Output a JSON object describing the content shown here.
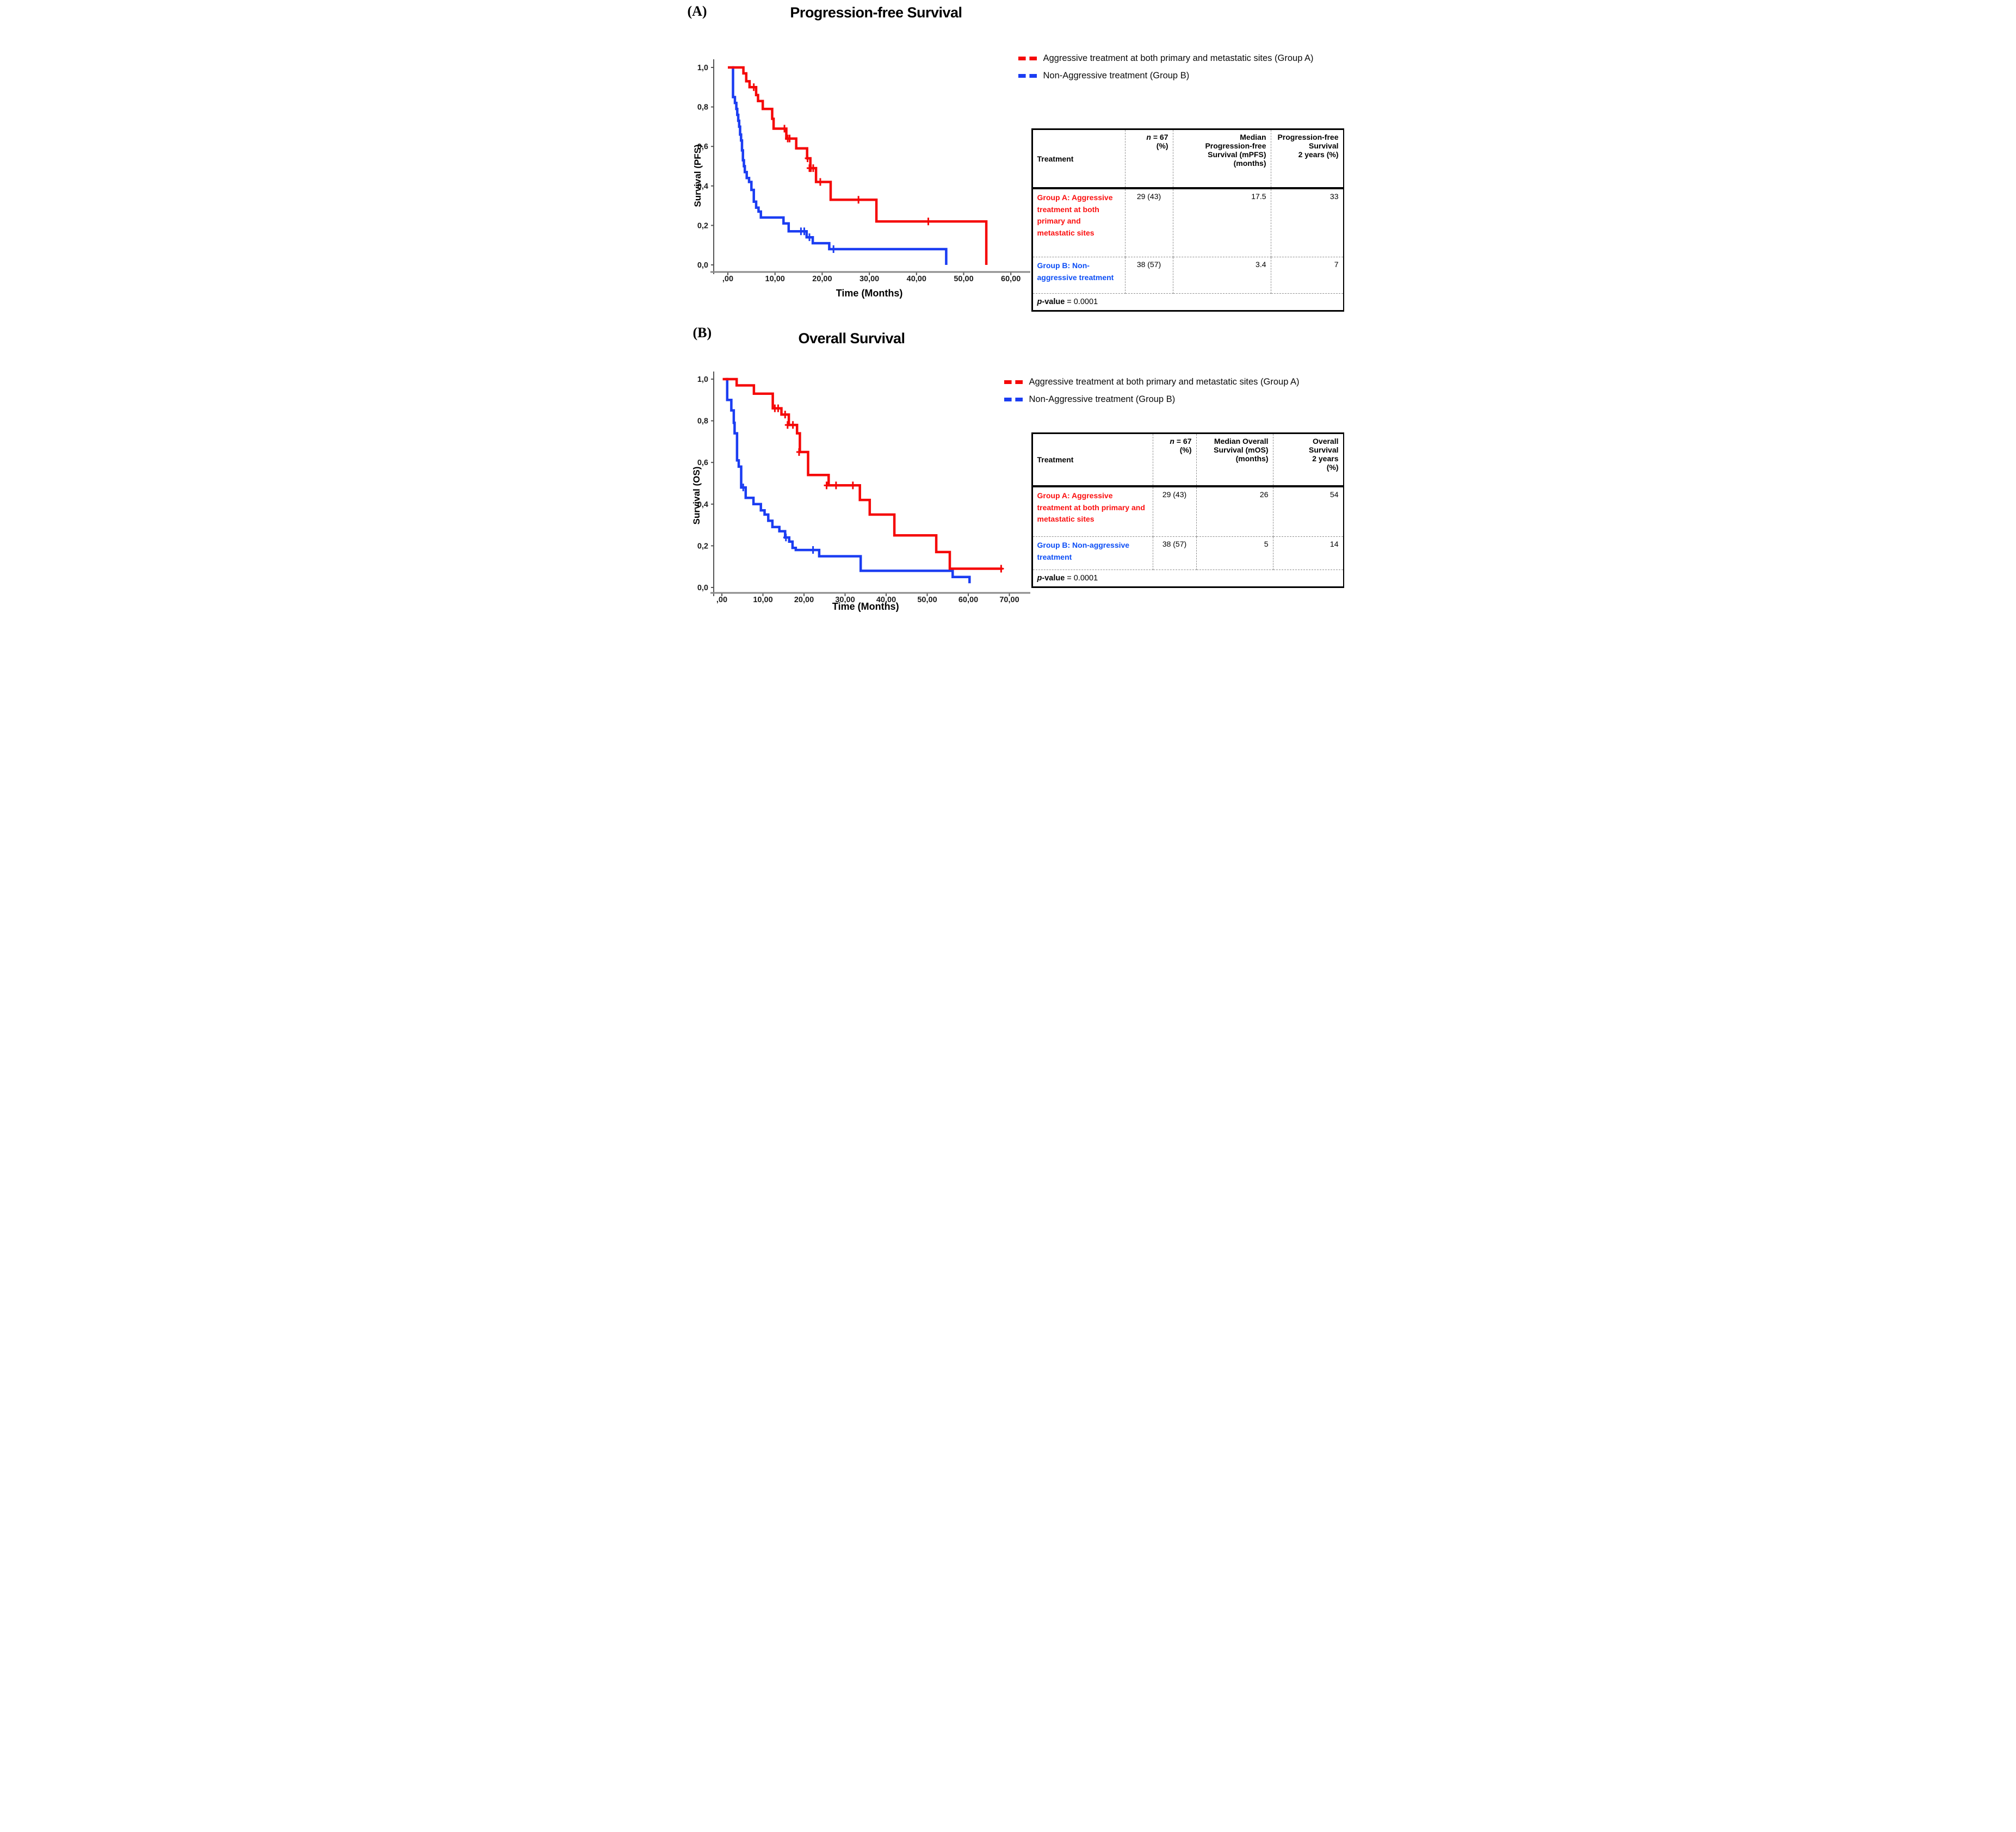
{
  "colors": {
    "curve_red": "#f50808",
    "curve_blue": "#1b3df2",
    "table_red": "#fb0f0f",
    "table_blue": "#0b4df5",
    "axis_line": "#555555",
    "baseline": "#8a8a8a"
  },
  "panelA": {
    "tag": "(A)",
    "title": "Progression-free Survival",
    "legend": [
      {
        "label": "Aggressive treatment at both primary and metastatic sites (Group A)",
        "color": "#f50808"
      },
      {
        "label": "Non-Aggressive treatment (Group B)",
        "color": "#1b3df2"
      }
    ],
    "table": {
      "header": {
        "treatment": "Treatment",
        "n_italic": "n",
        "n_rest": " = 67",
        "n_pct": "(%)",
        "median": "Median\nProgression-free\nSurvival (mPFS)\n(months)",
        "two_year": "Progression-free\nSurvival\n2 years (%)"
      },
      "rows": [
        {
          "label": "Group A: Aggressive treatment at both primary and metastatic sites",
          "n": "29 (43)",
          "median": "17.5",
          "two_year": "33"
        },
        {
          "label": "Group B: Non-aggressive treatment",
          "n": "38 (57)",
          "median": "3.4",
          "two_year": "7"
        }
      ],
      "p_italic": "p",
      "p_bold": "-value",
      "p_eq": "= 0.0001"
    }
  },
  "panelB": {
    "tag": "(B)",
    "title": "Overall Survival",
    "legend": [
      {
        "label": "Aggressive treatment at both primary and metastatic sites (Group A)",
        "color": "#f50808"
      },
      {
        "label": "Non-Aggressive treatment (Group B)",
        "color": "#1b3df2"
      }
    ],
    "table": {
      "header": {
        "treatment": "Treatment",
        "n_italic": "n",
        "n_rest": " = 67",
        "n_pct": "(%)",
        "median": "Median Overall\nSurvival (mOS)\n(months)",
        "two_year": "Overall\nSurvival\n2 years\n(%)"
      },
      "rows": [
        {
          "label": "Group A: Aggressive treatment at both primary and metastatic sites",
          "n": "29 (43)",
          "median": "26",
          "two_year": "54"
        },
        {
          "label": "Group B: Non-aggressive treatment",
          "n": "38 (57)",
          "median": "5",
          "two_year": "14"
        }
      ],
      "p_italic": "p",
      "p_bold": "-value",
      "p_eq": "= 0.0001"
    }
  },
  "chart_data": [
    {
      "type": "line",
      "subtype": "kaplan-meier-step",
      "title": "Progression-free Survival",
      "xlabel": "Time (Months)",
      "ylabel": "Survival (PFS)",
      "xlim": [
        0,
        63
      ],
      "ylim": [
        0,
        1.0
      ],
      "grid": false,
      "legend_position": "top-right",
      "xticks": {
        "values": [
          0,
          10,
          20,
          30,
          40,
          50,
          60
        ],
        "labels": [
          ",00",
          "10,00",
          "20,00",
          "30,00",
          "40,00",
          "50,00",
          "60,00"
        ]
      },
      "yticks": {
        "values": [
          1.0,
          0.8,
          0.6,
          0.4,
          0.2,
          0.0
        ],
        "labels": [
          "1,0",
          "0,8",
          "0,6",
          "0,4",
          "0,2",
          "0,0"
        ]
      },
      "series": [
        {
          "name": "Aggressive treatment at both primary and metastatic sites (Group A)",
          "color": "#f50808",
          "n": 29,
          "median_months": 17.5,
          "survival_2yr_pct": 33,
          "points": [
            [
              0,
              1.0
            ],
            [
              3.3,
              0.97
            ],
            [
              3.9,
              0.93
            ],
            [
              4.6,
              0.9
            ],
            [
              6.0,
              0.86
            ],
            [
              6.4,
              0.83
            ],
            [
              7.4,
              0.79
            ],
            [
              9.4,
              0.74
            ],
            [
              9.7,
              0.69
            ],
            [
              12.4,
              0.64
            ],
            [
              14.5,
              0.59
            ],
            [
              16.8,
              0.54
            ],
            [
              17.5,
              0.49
            ],
            [
              18.7,
              0.42
            ],
            [
              21.8,
              0.33
            ],
            [
              31.5,
              0.22
            ],
            [
              54.8,
              0.0
            ]
          ],
          "censors": [
            [
              5.5,
              0.9
            ],
            [
              12.0,
              0.69
            ],
            [
              12.7,
              0.64
            ],
            [
              13.1,
              0.64
            ],
            [
              16.9,
              0.54
            ],
            [
              17.3,
              0.49
            ],
            [
              17.6,
              0.49
            ],
            [
              18.1,
              0.49
            ],
            [
              19.6,
              0.42
            ],
            [
              27.7,
              0.33
            ],
            [
              42.5,
              0.22
            ]
          ]
        },
        {
          "name": "Non-Aggressive treatment (Group B)",
          "color": "#1b3df2",
          "n": 38,
          "median_months": 3.4,
          "survival_2yr_pct": 7,
          "points": [
            [
              0.9,
              1.0
            ],
            [
              1.1,
              0.85
            ],
            [
              1.5,
              0.82
            ],
            [
              1.8,
              0.79
            ],
            [
              2.0,
              0.76
            ],
            [
              2.2,
              0.73
            ],
            [
              2.4,
              0.7
            ],
            [
              2.6,
              0.66
            ],
            [
              2.8,
              0.63
            ],
            [
              3.0,
              0.58
            ],
            [
              3.2,
              0.53
            ],
            [
              3.4,
              0.5
            ],
            [
              3.6,
              0.47
            ],
            [
              4.0,
              0.44
            ],
            [
              4.5,
              0.42
            ],
            [
              5.0,
              0.38
            ],
            [
              5.5,
              0.32
            ],
            [
              6.0,
              0.29
            ],
            [
              6.5,
              0.27
            ],
            [
              7.0,
              0.24
            ],
            [
              11.8,
              0.21
            ],
            [
              12.9,
              0.17
            ],
            [
              16.7,
              0.14
            ],
            [
              18.0,
              0.11
            ],
            [
              21.5,
              0.08
            ],
            [
              46.3,
              0.0
            ]
          ],
          "censors": [
            [
              15.5,
              0.17
            ],
            [
              16.2,
              0.17
            ],
            [
              17.3,
              0.14
            ],
            [
              22.4,
              0.08
            ]
          ]
        }
      ]
    },
    {
      "type": "line",
      "subtype": "kaplan-meier-step",
      "title": "Overall Survival",
      "xlabel": "Time (Months)",
      "ylabel": "Survival (OS)",
      "xlim": [
        0,
        73
      ],
      "ylim": [
        0,
        1.0
      ],
      "grid": false,
      "legend_position": "top-right",
      "xticks": {
        "values": [
          0,
          10,
          20,
          30,
          40,
          50,
          60,
          70
        ],
        "labels": [
          ",00",
          "10,00",
          "20,00",
          "30,00",
          "40,00",
          "50,00",
          "60,00",
          "70,00"
        ]
      },
      "yticks": {
        "values": [
          1.0,
          0.8,
          0.6,
          0.4,
          0.2,
          0.0
        ],
        "labels": [
          "1,0",
          "0,8",
          "0,6",
          "0,4",
          "0,2",
          "0,0"
        ]
      },
      "series": [
        {
          "name": "Aggressive treatment at both primary and metastatic sites (Group A)",
          "color": "#f50808",
          "n": 29,
          "median_months": 26,
          "survival_2yr_pct": 54,
          "points": [
            [
              0.2,
              1.0
            ],
            [
              3.6,
              0.97
            ],
            [
              7.8,
              0.93
            ],
            [
              12.4,
              0.86
            ],
            [
              14.5,
              0.83
            ],
            [
              16.3,
              0.78
            ],
            [
              18.3,
              0.74
            ],
            [
              19.0,
              0.65
            ],
            [
              21.0,
              0.54
            ],
            [
              26.0,
              0.49
            ],
            [
              33.6,
              0.42
            ],
            [
              36.0,
              0.35
            ],
            [
              42.0,
              0.25
            ],
            [
              52.2,
              0.17
            ],
            [
              55.5,
              0.09
            ],
            [
              68.3,
              0.09
            ]
          ],
          "censors": [
            [
              12.9,
              0.86
            ],
            [
              13.7,
              0.86
            ],
            [
              15.4,
              0.83
            ],
            [
              16.0,
              0.78
            ],
            [
              17.3,
              0.78
            ],
            [
              18.8,
              0.65
            ],
            [
              25.5,
              0.49
            ],
            [
              27.8,
              0.49
            ],
            [
              31.9,
              0.49
            ],
            [
              68.0,
              0.09
            ]
          ]
        },
        {
          "name": "Non-Aggressive treatment (Group B)",
          "color": "#1b3df2",
          "n": 38,
          "median_months": 5,
          "survival_2yr_pct": 14,
          "points": [
            [
              0.9,
              1.0
            ],
            [
              1.3,
              0.9
            ],
            [
              2.3,
              0.85
            ],
            [
              2.9,
              0.79
            ],
            [
              3.1,
              0.74
            ],
            [
              3.7,
              0.61
            ],
            [
              4.1,
              0.58
            ],
            [
              4.7,
              0.48
            ],
            [
              5.8,
              0.43
            ],
            [
              7.7,
              0.4
            ],
            [
              9.5,
              0.37
            ],
            [
              10.4,
              0.35
            ],
            [
              11.3,
              0.32
            ],
            [
              12.3,
              0.29
            ],
            [
              14.0,
              0.27
            ],
            [
              15.4,
              0.24
            ],
            [
              16.4,
              0.22
            ],
            [
              17.2,
              0.19
            ],
            [
              18.0,
              0.18
            ],
            [
              23.7,
              0.15
            ],
            [
              33.8,
              0.08
            ],
            [
              56.2,
              0.05
            ],
            [
              60.3,
              0.02
            ]
          ],
          "censors": [
            [
              5.2,
              0.48
            ],
            [
              15.6,
              0.24
            ],
            [
              22.2,
              0.18
            ]
          ]
        }
      ]
    }
  ]
}
